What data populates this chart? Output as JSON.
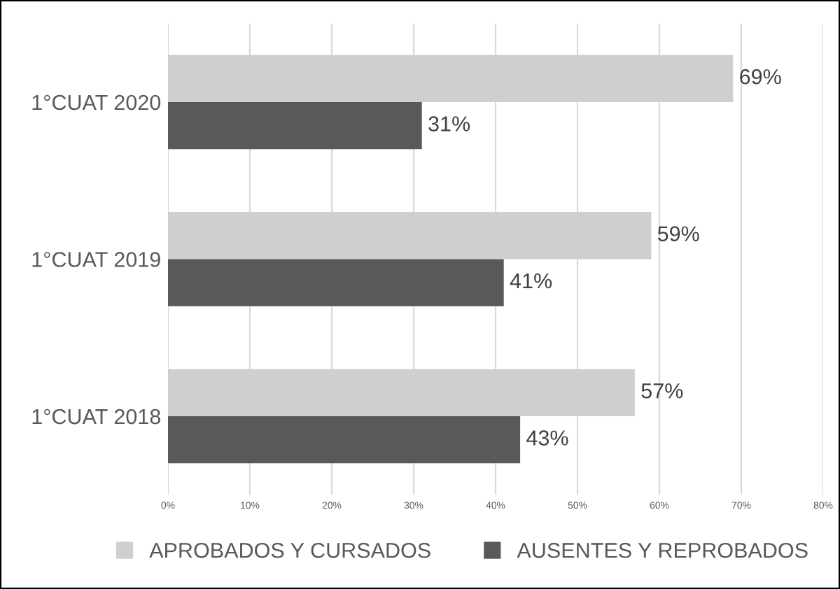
{
  "chart_data": {
    "type": "bar",
    "orientation": "horizontal",
    "categories": [
      "1°CUAT 2020",
      "1°CUAT 2019",
      "1°CUAT 2018"
    ],
    "series": [
      {
        "name": "APROBADOS Y CURSADOS",
        "color": "#d0cece",
        "values": [
          69,
          59,
          57
        ],
        "value_labels": [
          "69%",
          "59%",
          "57%"
        ]
      },
      {
        "name": "AUSENTES Y REPROBADOS",
        "color": "#595959",
        "values": [
          31,
          41,
          43
        ],
        "value_labels": [
          "31%",
          "41%",
          "43%"
        ]
      }
    ],
    "xlim": [
      0,
      80
    ],
    "xticks": [
      {
        "value": 0,
        "label": "0%"
      },
      {
        "value": 10,
        "label": "10%"
      },
      {
        "value": 20,
        "label": "20%"
      },
      {
        "value": 30,
        "label": "30%"
      },
      {
        "value": 40,
        "label": "40%"
      },
      {
        "value": 50,
        "label": "50%"
      },
      {
        "value": 60,
        "label": "60%"
      },
      {
        "value": 70,
        "label": "70%"
      },
      {
        "value": 80,
        "label": "80%"
      }
    ],
    "grid": "x",
    "legend": "bottom"
  }
}
